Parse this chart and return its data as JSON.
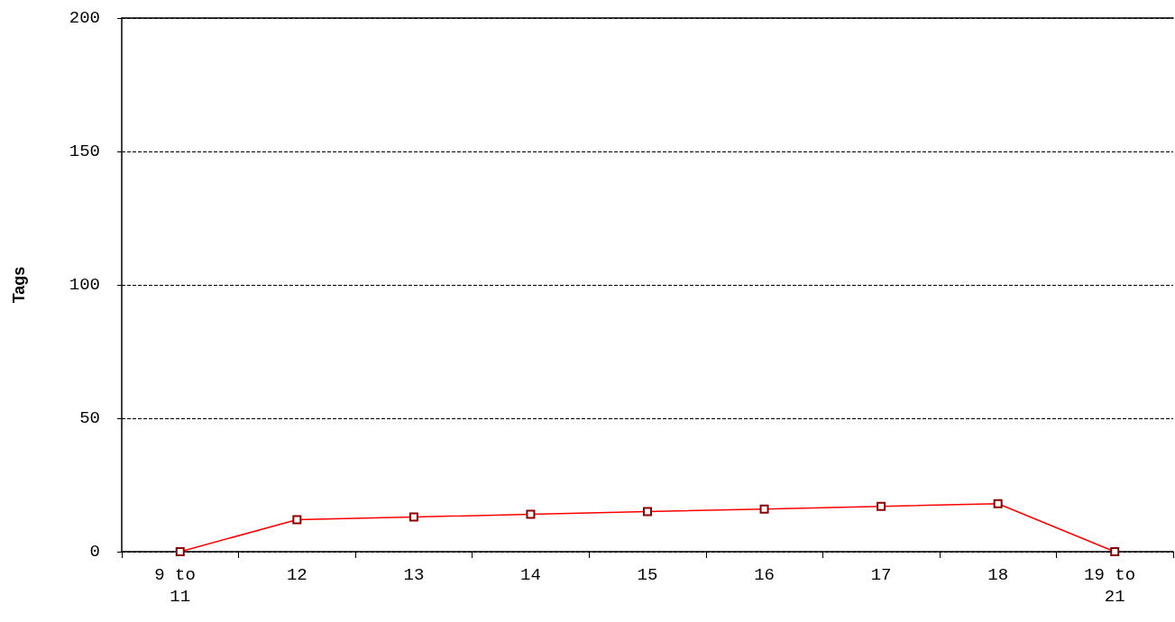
{
  "chart_data": {
    "type": "line",
    "ylabel": "Tags",
    "categories": [
      "9 to 11",
      "12",
      "13",
      "14",
      "15",
      "16",
      "17",
      "18",
      "19 to 21"
    ],
    "series": [
      {
        "color": "#ff0000",
        "values": [
          0,
          12,
          13,
          14,
          15,
          16,
          17,
          18,
          0
        ]
      }
    ],
    "ylim": [
      0,
      200
    ],
    "yticks": [
      0,
      50,
      100,
      150,
      200
    ],
    "grid": "y",
    "marker": "square",
    "line_style": "solid"
  }
}
